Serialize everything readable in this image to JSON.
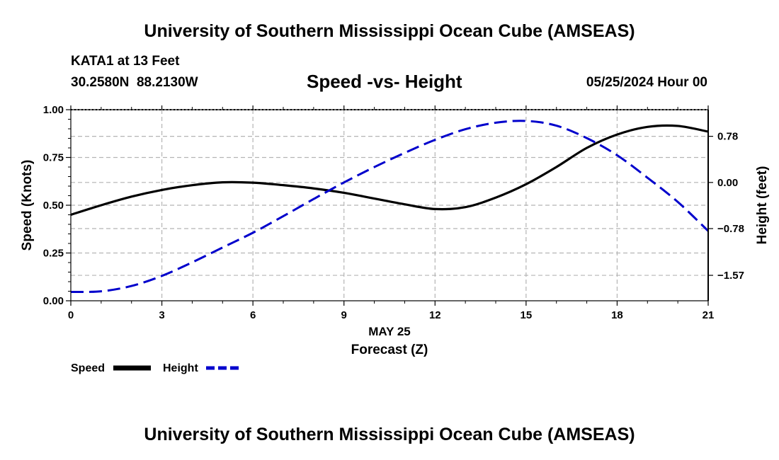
{
  "header": {
    "title": "University of Southern Mississippi Ocean Cube (AMSEAS)",
    "station": "KATA1 at 13 Feet",
    "coords": "30.2580N  88.2130W",
    "datetime": "05/25/2024 Hour 00",
    "footer_title": "University of Southern Mississippi Ocean Cube (AMSEAS)"
  },
  "colors": {
    "speed": "#000000",
    "height": "#0000cc",
    "grid": "#b4b4b4"
  },
  "chart_data": {
    "type": "line",
    "title": "Speed -vs- Height",
    "xlabel": "Forecast (Z)",
    "xdate": "MAY 25",
    "ylabel": "Speed (Knots)",
    "y2label": "Height (feet)",
    "xlim": [
      0,
      21
    ],
    "ylim": [
      0,
      1
    ],
    "y2lim": [
      -2.0,
      1.23
    ],
    "xticks": [
      0,
      3,
      6,
      9,
      12,
      15,
      18,
      21
    ],
    "xtick_labels": [
      "0",
      "3",
      "6",
      "9",
      "12",
      "15",
      "18",
      "21"
    ],
    "yticks": [
      0,
      0.25,
      0.5,
      0.75,
      1.0
    ],
    "ytick_labels": [
      "0.00",
      "0.25",
      "0.50",
      "0.75",
      "1.00"
    ],
    "y2ticks": [
      -1.57,
      -0.78,
      0.0,
      0.78
    ],
    "y2tick_labels": [
      "−1.57",
      "−0.78",
      "0.00",
      "0.78"
    ],
    "series": [
      {
        "name": "Speed",
        "axis": "left",
        "style": "solid",
        "x": [
          0,
          1,
          2,
          3,
          4,
          5,
          6,
          7,
          8,
          9,
          10,
          11,
          12,
          13,
          14,
          15,
          16,
          17,
          18,
          19,
          20,
          21
        ],
        "values": [
          0.45,
          0.5,
          0.545,
          0.58,
          0.605,
          0.62,
          0.618,
          0.605,
          0.588,
          0.565,
          0.535,
          0.505,
          0.48,
          0.49,
          0.54,
          0.61,
          0.7,
          0.8,
          0.87,
          0.91,
          0.915,
          0.885
        ]
      },
      {
        "name": "Height",
        "axis": "right",
        "style": "dashed",
        "x": [
          0,
          1,
          2,
          3,
          4,
          5,
          6,
          7,
          8,
          9,
          10,
          11,
          12,
          13,
          14,
          15,
          16,
          17,
          18,
          19,
          20,
          21
        ],
        "values": [
          -1.85,
          -1.84,
          -1.75,
          -1.58,
          -1.35,
          -1.1,
          -0.85,
          -0.57,
          -0.28,
          0.0,
          0.26,
          0.5,
          0.72,
          0.9,
          1.01,
          1.04,
          0.96,
          0.75,
          0.46,
          0.08,
          -0.33,
          -0.82
        ]
      }
    ],
    "legend": [
      {
        "label": "Speed",
        "style": "solid"
      },
      {
        "label": "Height",
        "style": "dashed"
      }
    ],
    "legend_position": "bottom-left",
    "grid": true
  }
}
